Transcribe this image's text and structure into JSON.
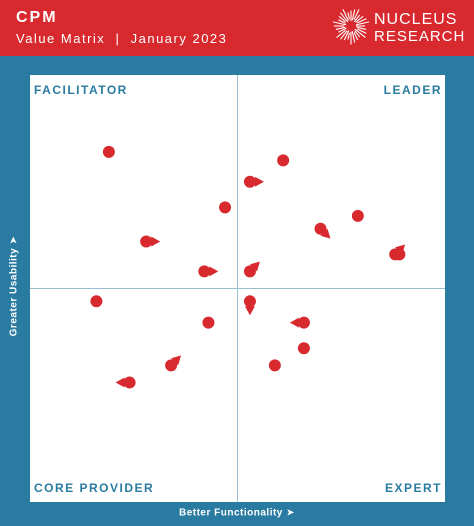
{
  "header": {
    "title": "CPM",
    "subtitle": "Value Matrix  |  January 2023",
    "logo_line1": "NUCLEUS",
    "logo_line2": "RESEARCH"
  },
  "colors": {
    "header_bg": "#d8292f",
    "frame_bg": "#2a7ba1",
    "point": "#d8292f",
    "quadrant_label": "#2a7ba1"
  },
  "chart_data": {
    "type": "scatter",
    "title": "CPM Value Matrix",
    "xlabel": "Better Functionality ➤",
    "ylabel": "Greater Usability ➤",
    "xlim": [
      0,
      1
    ],
    "ylim": [
      0,
      1
    ],
    "grid": false,
    "quadrants": {
      "top_left": "FACILITATOR",
      "top_right": "LEADER",
      "bottom_left": "CORE PROVIDER",
      "bottom_right": "EXPERT"
    },
    "points": [
      {
        "x": 0.19,
        "y": 0.82,
        "arrow": "none"
      },
      {
        "x": 0.61,
        "y": 0.8,
        "arrow": "none"
      },
      {
        "x": 0.53,
        "y": 0.75,
        "arrow": "right"
      },
      {
        "x": 0.47,
        "y": 0.69,
        "arrow": "none"
      },
      {
        "x": 0.79,
        "y": 0.67,
        "arrow": "none"
      },
      {
        "x": 0.7,
        "y": 0.64,
        "arrow": "down-right"
      },
      {
        "x": 0.28,
        "y": 0.61,
        "arrow": "right"
      },
      {
        "x": 0.88,
        "y": 0.58,
        "arrow": "up-right"
      },
      {
        "x": 0.89,
        "y": 0.58,
        "arrow": "none"
      },
      {
        "x": 0.42,
        "y": 0.54,
        "arrow": "right"
      },
      {
        "x": 0.53,
        "y": 0.54,
        "arrow": "up-right"
      },
      {
        "x": 0.16,
        "y": 0.47,
        "arrow": "none"
      },
      {
        "x": 0.53,
        "y": 0.47,
        "arrow": "down"
      },
      {
        "x": 0.66,
        "y": 0.42,
        "arrow": "left"
      },
      {
        "x": 0.43,
        "y": 0.42,
        "arrow": "none"
      },
      {
        "x": 0.66,
        "y": 0.36,
        "arrow": "none"
      },
      {
        "x": 0.34,
        "y": 0.32,
        "arrow": "up-right"
      },
      {
        "x": 0.59,
        "y": 0.32,
        "arrow": "none"
      },
      {
        "x": 0.24,
        "y": 0.28,
        "arrow": "left"
      }
    ]
  }
}
